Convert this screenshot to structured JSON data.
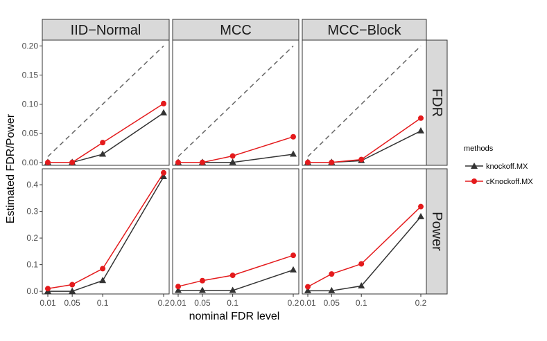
{
  "chart_data": {
    "type": "line",
    "x": [
      0.01,
      0.05,
      0.1,
      0.2
    ],
    "x_tick_labels": [
      "0.01",
      "0.05",
      "0.1",
      "0.2"
    ],
    "xlabel": "nominal FDR level",
    "ylabel": "Estimated FDR/Power",
    "columns": [
      "IID−Normal",
      "MCC",
      "MCC−Block"
    ],
    "rows": [
      {
        "label": "FDR",
        "ylim": [
          -0.005,
          0.21
        ],
        "ticks": [
          0.0,
          0.05,
          0.1,
          0.15,
          0.2
        ],
        "tick_labels": [
          "0.00",
          "0.05",
          "0.10",
          "0.15",
          "0.20"
        ]
      },
      {
        "label": "Power",
        "ylim": [
          -0.01,
          0.46
        ],
        "ticks": [
          0.0,
          0.1,
          0.2,
          0.3,
          0.4
        ],
        "tick_labels": [
          "0.0",
          "0.1",
          "0.2",
          "0.3",
          "0.4"
        ]
      }
    ],
    "reference_line": "y = x (dashed)",
    "legend": {
      "title": "methods",
      "items": [
        {
          "name": "knockoff.MX",
          "color": "#333333",
          "marker": "triangle"
        },
        {
          "name": "cKnockoff.MX",
          "color": "#e41a1c",
          "marker": "circle"
        }
      ]
    },
    "panels": [
      {
        "row": "FDR",
        "col": "IID−Normal",
        "series": {
          "knockoff.MX": [
            0.0,
            0.0,
            0.014,
            0.085
          ],
          "cKnockoff.MX": [
            0.0,
            0.0,
            0.034,
            0.101
          ]
        }
      },
      {
        "row": "FDR",
        "col": "MCC",
        "series": {
          "knockoff.MX": [
            0.0,
            0.0,
            0.0,
            0.014
          ],
          "cKnockoff.MX": [
            0.0,
            0.0,
            0.011,
            0.044
          ]
        }
      },
      {
        "row": "FDR",
        "col": "MCC−Block",
        "series": {
          "knockoff.MX": [
            0.0,
            0.0,
            0.003,
            0.054
          ],
          "cKnockoff.MX": [
            0.0,
            0.0,
            0.005,
            0.076
          ]
        }
      },
      {
        "row": "Power",
        "col": "IID−Normal",
        "series": {
          "knockoff.MX": [
            0.0,
            0.0,
            0.04,
            0.43
          ],
          "cKnockoff.MX": [
            0.01,
            0.025,
            0.085,
            0.445
          ]
        }
      },
      {
        "row": "Power",
        "col": "MCC",
        "series": {
          "knockoff.MX": [
            0.003,
            0.003,
            0.003,
            0.08
          ],
          "cKnockoff.MX": [
            0.018,
            0.04,
            0.06,
            0.135
          ]
        }
      },
      {
        "row": "Power",
        "col": "MCC−Block",
        "series": {
          "knockoff.MX": [
            0.002,
            0.002,
            0.02,
            0.28
          ],
          "cKnockoff.MX": [
            0.017,
            0.065,
            0.103,
            0.318
          ]
        }
      }
    ],
    "colors": {
      "knockoff": "#333333",
      "cknockoff": "#e41a1c",
      "strip": "#d9d9d9"
    }
  }
}
